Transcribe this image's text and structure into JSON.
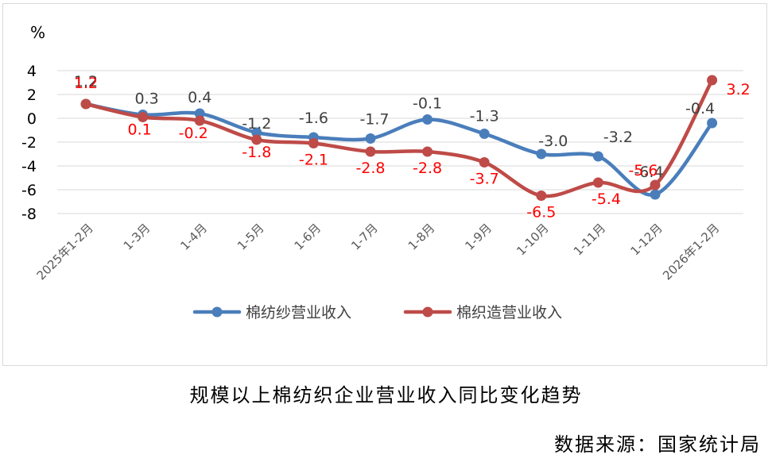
{
  "chart_data": {
    "type": "line",
    "unit_label": "%",
    "categories": [
      "2025年1-2月",
      "1-3月",
      "1-4月",
      "1-5月",
      "1-6月",
      "1-7月",
      "1-8月",
      "1-9月",
      "1-10月",
      "1-11月",
      "1-12月",
      "2026年1-2月"
    ],
    "y_ticks": [
      "4",
      "2",
      "0",
      "-2",
      "-4",
      "-6",
      "-8"
    ],
    "ylim": [
      -8,
      4
    ],
    "grid": true,
    "legend_position": "bottom",
    "series": [
      {
        "name": "棉纺纱营业收入",
        "color": "#4a7ebb",
        "values": [
          1.2,
          0.3,
          0.4,
          -1.2,
          -1.6,
          -1.7,
          -0.1,
          -1.3,
          -3.0,
          -3.2,
          -6.4,
          -0.4
        ],
        "labels": [
          "1.2",
          "0.3",
          "0.4",
          "-1.2",
          "-1.6",
          "-1.7",
          "-0.1",
          "-1.3",
          "-3.0",
          "-3.2",
          "-6.4",
          "-0.4"
        ],
        "label_color": "#404040"
      },
      {
        "name": "棉织造营业收入",
        "color": "#be4b48",
        "values": [
          1.2,
          0.1,
          -0.2,
          -1.8,
          -2.1,
          -2.8,
          -2.8,
          -3.7,
          -6.5,
          -5.4,
          -5.6,
          3.2
        ],
        "labels": [
          "1.2",
          "0.1",
          "-0.2",
          "-1.8",
          "-2.1",
          "-2.8",
          "-2.8",
          "-3.7",
          "-6.5",
          "-5.4",
          "-5.6",
          "3.2"
        ],
        "label_color": "#ff0000"
      }
    ]
  },
  "caption": {
    "title": "规模以上棉纺织企业营业收入同比变化趋势",
    "source": "数据来源：国家统计局"
  }
}
